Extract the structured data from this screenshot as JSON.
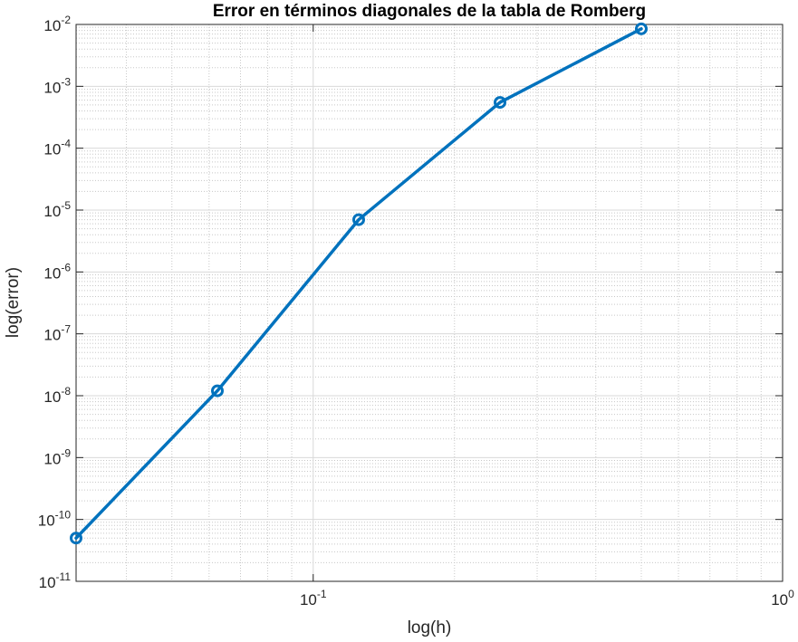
{
  "chart_data": {
    "type": "line",
    "title": "Error en términos diagonales de la tabla de Romberg",
    "xlabel": "log(h)",
    "ylabel": "log(error)",
    "x_scale": "log",
    "y_scale": "log",
    "xlim": [
      0.03125,
      1
    ],
    "ylim": [
      1e-11,
      0.01
    ],
    "grid": true,
    "minor_grid": true,
    "x_ticks": [
      {
        "value": 0.1,
        "base": "10",
        "exp": "-1"
      },
      {
        "value": 1,
        "base": "10",
        "exp": "0"
      }
    ],
    "y_ticks": [
      {
        "value": 1e-11,
        "base": "10",
        "exp": "-11"
      },
      {
        "value": 1e-10,
        "base": "10",
        "exp": "-10"
      },
      {
        "value": 1e-09,
        "base": "10",
        "exp": "-9"
      },
      {
        "value": 1e-08,
        "base": "10",
        "exp": "-8"
      },
      {
        "value": 1e-07,
        "base": "10",
        "exp": "-7"
      },
      {
        "value": 1e-06,
        "base": "10",
        "exp": "-6"
      },
      {
        "value": 1e-05,
        "base": "10",
        "exp": "-5"
      },
      {
        "value": 0.0001,
        "base": "10",
        "exp": "-4"
      },
      {
        "value": 0.001,
        "base": "10",
        "exp": "-3"
      },
      {
        "value": 0.01,
        "base": "10",
        "exp": "-2"
      }
    ],
    "series": [
      {
        "color": "#0072BD",
        "marker": "circle",
        "x": [
          0.03125,
          0.0625,
          0.125,
          0.25,
          0.5
        ],
        "y": [
          5e-11,
          1.2e-08,
          7e-06,
          0.00055,
          0.0085
        ]
      }
    ]
  }
}
